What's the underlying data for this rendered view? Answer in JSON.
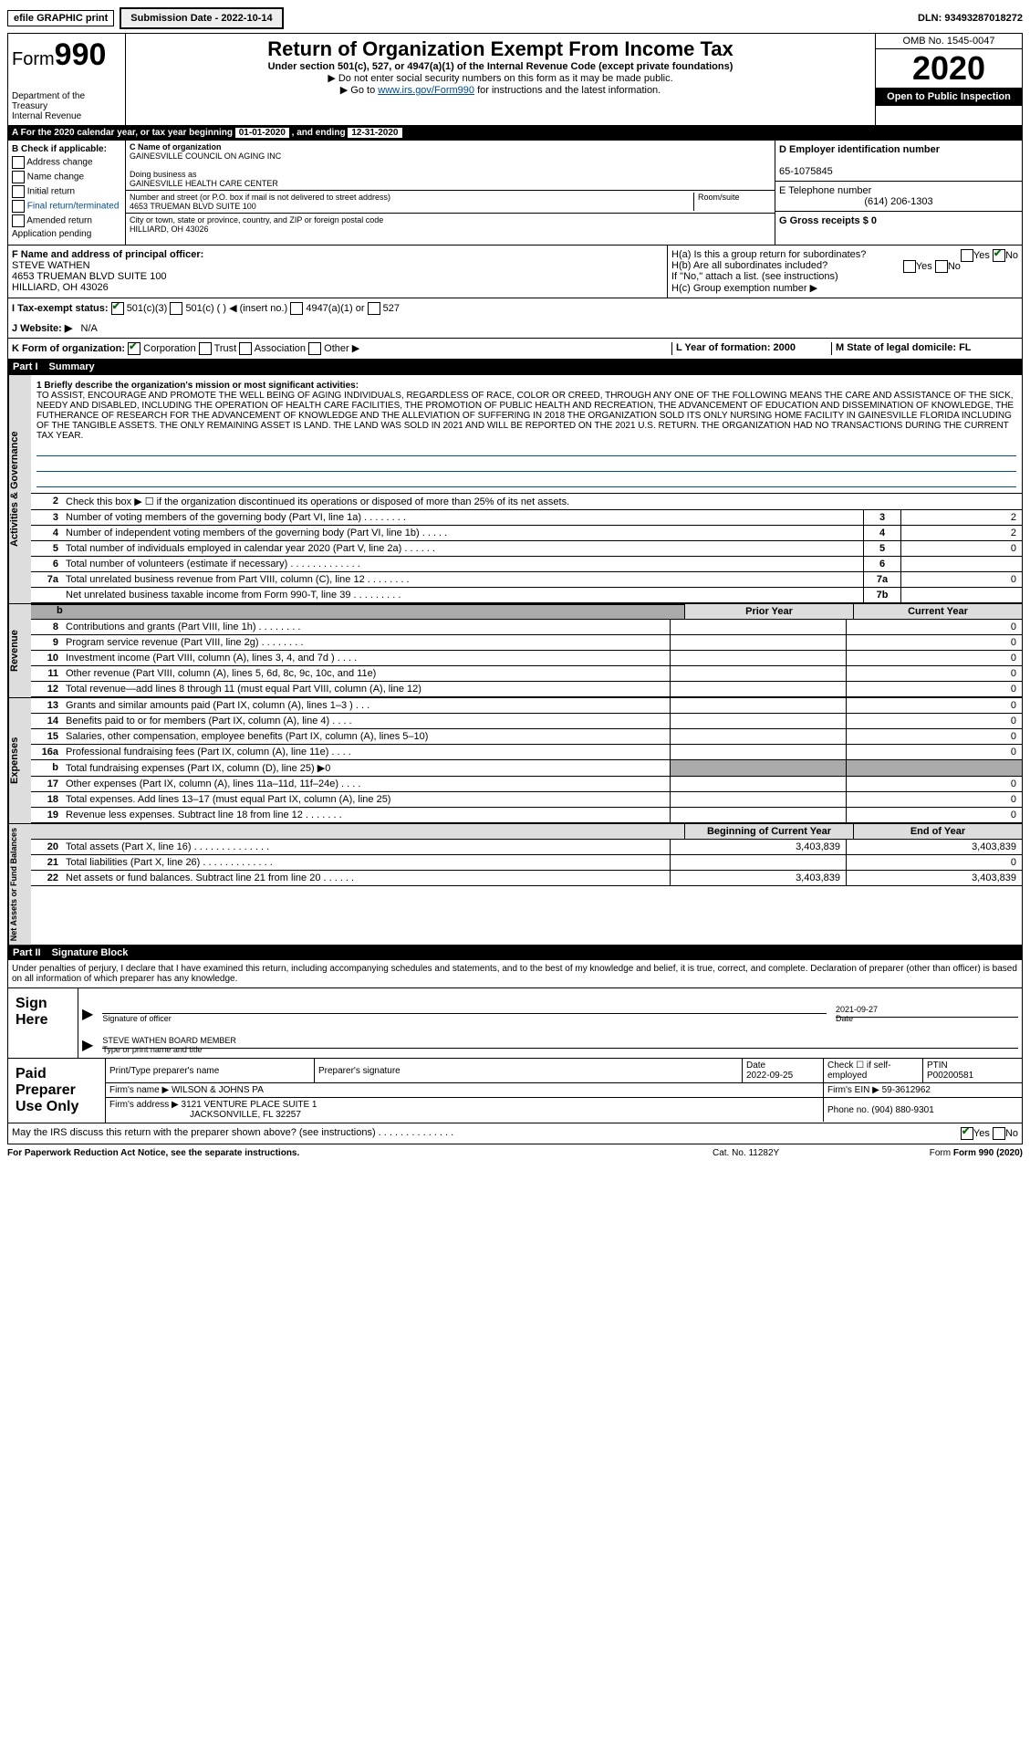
{
  "top": {
    "efile": "efile GRAPHIC print",
    "submission_label": "Submission Date - 2022-10-14",
    "dln": "DLN: 93493287018272"
  },
  "header": {
    "form_prefix": "Form",
    "form_number": "990",
    "dept1": "Department of the Treasury",
    "dept2": "Internal Revenue",
    "title": "Return of Organization Exempt From Income Tax",
    "sub1": "Under section 501(c), 527, or 4947(a)(1) of the Internal Revenue Code (except private foundations)",
    "sub2": "▶ Do not enter social security numbers on this form as it may be made public.",
    "sub3a": "▶ Go to ",
    "sub3_link": "www.irs.gov/Form990",
    "sub3b": " for instructions and the latest information.",
    "omb": "OMB No. 1545-0047",
    "year": "2020",
    "open_public": "Open to Public Inspection"
  },
  "cal_year": {
    "prefix": "A   For the 2020 calendar year, or tax year beginning ",
    "begin": "01-01-2020",
    "mid": " , and ending ",
    "end": "12-31-2020"
  },
  "section_b": {
    "b_label": "B Check if applicable:",
    "opts": [
      "Address change",
      "Name change",
      "Initial return",
      "Final return/terminated",
      "Amended return",
      "Application pending"
    ],
    "c_label": "C Name of organization",
    "org_name": "GAINESVILLE COUNCIL ON AGING INC",
    "dba_label": "Doing business as",
    "dba": "GAINESVILLE HEALTH CARE CENTER",
    "addr_label": "Number and street (or P.O. box if mail is not delivered to street address)",
    "addr": "4653 TRUEMAN BLVD SUITE 100",
    "room_label": "Room/suite",
    "city_label": "City or town, state or province, country, and ZIP or foreign postal code",
    "city": "HILLIARD, OH  43026",
    "d_label": "D Employer identification number",
    "ein": "65-1075845",
    "e_label": "E Telephone number",
    "phone": "(614) 206-1303",
    "g_label": "G Gross receipts $ 0"
  },
  "section_fh": {
    "f_label": "F  Name and address of principal officer:",
    "f_name": "STEVE WATHEN",
    "f_addr1": "4653 TRUEMAN BLVD SUITE 100",
    "f_addr2": "HILLIARD, OH  43026",
    "ha_label": "H(a)  Is this a group return for subordinates?",
    "hb_label": "H(b)  Are all subordinates included?",
    "hb_note": "If \"No,\" attach a list. (see instructions)",
    "hc_label": "H(c)  Group exemption number ▶",
    "yes": "Yes",
    "no": "No"
  },
  "row_i": {
    "label": "I   Tax-exempt status:",
    "o1": "501(c)(3)",
    "o2": "501(c) (   ) ◀ (insert no.)",
    "o3": "4947(a)(1) or",
    "o4": "527"
  },
  "row_j": {
    "label": "J   Website: ▶",
    "val": "N/A"
  },
  "row_k": {
    "label": "K Form of organization:",
    "o1": "Corporation",
    "o2": "Trust",
    "o3": "Association",
    "o4": "Other ▶",
    "l_label": "L Year of formation: 2000",
    "m_label": "M State of legal domicile: FL"
  },
  "part1": {
    "tag": "Part I",
    "title": "Summary"
  },
  "mission": {
    "label": "1  Briefly describe the organization's mission or most significant activities:",
    "text": "TO ASSIST, ENCOURAGE AND PROMOTE THE WELL BEING OF AGING INDIVIDUALS, REGARDLESS OF RACE, COLOR OR CREED, THROUGH ANY ONE OF THE FOLLOWING MEANS THE CARE AND ASSISTANCE OF THE SICK, NEEDY AND DISABLED, INCLUDING THE OPERATION OF HEALTH CARE FACILITIES, THE PROMOTION OF PUBLIC HEALTH AND RECREATION, THE ADVANCEMENT OF EDUCATION AND DISSEMINATION OF KNOWLEDGE, THE FUTHERANCE OF RESEARCH FOR THE ADVANCEMENT OF KNOWLEDGE AND THE ALLEVIATION OF SUFFERING IN 2018 THE ORGANIZATION SOLD ITS ONLY NURSING HOME FACILITY IN GAINESVILLE FLORIDA INCLUDING OF THE TANGIBLE ASSETS. THE ONLY REMAINING ASSET IS LAND. THE LAND WAS SOLD IN 2021 AND WILL BE REPORTED ON THE 2021 U.S. RETURN. THE ORGANIZATION HAD NO TRANSACTIONS DURING THE CURRENT TAX YEAR."
  },
  "vtabs": {
    "ag": "Activities & Governance",
    "rev": "Revenue",
    "exp": "Expenses",
    "net": "Net Assets or Fund Balances"
  },
  "lines_gov": [
    {
      "n": "2",
      "txt": "Check this box ▶ ☐ if the organization discontinued its operations or disposed of more than 25% of its net assets."
    },
    {
      "n": "3",
      "txt": "Number of voting members of the governing body (Part VI, line 1a)  .   .   .   .   .   .   .   .",
      "box": "3",
      "val": "2"
    },
    {
      "n": "4",
      "txt": "Number of independent voting members of the governing body (Part VI, line 1b)   .   .   .   .   .",
      "box": "4",
      "val": "2"
    },
    {
      "n": "5",
      "txt": "Total number of individuals employed in calendar year 2020 (Part V, line 2a)   .   .   .   .   .   .",
      "box": "5",
      "val": "0"
    },
    {
      "n": "6",
      "txt": "Total number of volunteers (estimate if necessary)  .   .   .   .   .   .   .   .   .   .   .   .   .",
      "box": "6",
      "val": ""
    },
    {
      "n": "7a",
      "txt": "Total unrelated business revenue from Part VIII, column (C), line 12  .   .   .   .   .   .   .   .",
      "box": "7a",
      "val": "0"
    },
    {
      "n": "",
      "txt": "Net unrelated business taxable income from Form 990-T, line 39   .   .   .   .   .   .   .   .   .",
      "box": "7b",
      "val": ""
    }
  ],
  "fin_hdr": {
    "prior": "Prior Year",
    "current": "Current Year"
  },
  "lines_rev": [
    {
      "n": "8",
      "txt": "Contributions and grants (Part VIII, line 1h)  .   .   .   .   .   .   .   .",
      "c1": "",
      "c2": "0"
    },
    {
      "n": "9",
      "txt": "Program service revenue (Part VIII, line 2g)  .   .   .   .   .   .   .   .",
      "c1": "",
      "c2": "0"
    },
    {
      "n": "10",
      "txt": "Investment income (Part VIII, column (A), lines 3, 4, and 7d )   .   .   .   .",
      "c1": "",
      "c2": "0"
    },
    {
      "n": "11",
      "txt": "Other revenue (Part VIII, column (A), lines 5, 6d, 8c, 9c, 10c, and 11e)",
      "c1": "",
      "c2": "0"
    },
    {
      "n": "12",
      "txt": "Total revenue—add lines 8 through 11 (must equal Part VIII, column (A), line 12)",
      "c1": "",
      "c2": "0"
    }
  ],
  "lines_exp": [
    {
      "n": "13",
      "txt": "Grants and similar amounts paid (Part IX, column (A), lines 1–3 )  .   .   .",
      "c1": "",
      "c2": "0"
    },
    {
      "n": "14",
      "txt": "Benefits paid to or for members (Part IX, column (A), line 4)  .   .   .   .",
      "c1": "",
      "c2": "0"
    },
    {
      "n": "15",
      "txt": "Salaries, other compensation, employee benefits (Part IX, column (A), lines 5–10)",
      "c1": "",
      "c2": "0"
    },
    {
      "n": "16a",
      "txt": "Professional fundraising fees (Part IX, column (A), line 11e)  .   .   .   .",
      "c1": "",
      "c2": "0"
    },
    {
      "n": "b",
      "txt": "Total fundraising expenses (Part IX, column (D), line 25) ▶0",
      "grey": true
    },
    {
      "n": "17",
      "txt": "Other expenses (Part IX, column (A), lines 11a–11d, 11f–24e)  .   .   .   .",
      "c1": "",
      "c2": "0"
    },
    {
      "n": "18",
      "txt": "Total expenses. Add lines 13–17 (must equal Part IX, column (A), line 25)",
      "c1": "",
      "c2": "0"
    },
    {
      "n": "19",
      "txt": "Revenue less expenses. Subtract line 18 from line 12  .   .   .   .   .   .   .",
      "c1": "",
      "c2": "0"
    }
  ],
  "net_hdr": {
    "begin": "Beginning of Current Year",
    "end": "End of Year"
  },
  "lines_net": [
    {
      "n": "20",
      "txt": "Total assets (Part X, line 16)  .   .   .   .   .   .   .   .   .   .   .   .   .   .",
      "c1": "3,403,839",
      "c2": "3,403,839"
    },
    {
      "n": "21",
      "txt": "Total liabilities (Part X, line 26)  .   .   .   .   .   .   .   .   .   .   .   .   .",
      "c1": "",
      "c2": "0"
    },
    {
      "n": "22",
      "txt": "Net assets or fund balances. Subtract line 21 from line 20  .   .   .   .   .   .",
      "c1": "3,403,839",
      "c2": "3,403,839"
    }
  ],
  "part2": {
    "tag": "Part II",
    "title": "Signature Block"
  },
  "sig_intro": "Under penalties of perjury, I declare that I have examined this return, including accompanying schedules and statements, and to the best of my knowledge and belief, it is true, correct, and complete. Declaration of preparer (other than officer) is based on all information of which preparer has any knowledge.",
  "sign": {
    "label": "Sign Here",
    "sig_of_officer": "Signature of officer",
    "date_val": "2021-09-27",
    "date_lbl": "Date",
    "name": "STEVE WATHEN  BOARD MEMBER",
    "name_lbl": "Type or print name and title"
  },
  "paid": {
    "label": "Paid Preparer Use Only",
    "h1": "Print/Type preparer's name",
    "h2": "Preparer's signature",
    "h3_lbl": "Date",
    "h3_val": "2022-09-25",
    "h4": "Check ☐ if self-employed",
    "h5_lbl": "PTIN",
    "h5_val": "P00200581",
    "firm_name_lbl": "Firm's name   ▶",
    "firm_name": "WILSON & JOHNS PA",
    "firm_ein_lbl": "Firm's EIN ▶",
    "firm_ein": "59-3612962",
    "firm_addr_lbl": "Firm's address ▶",
    "firm_addr1": "3121 VENTURE PLACE SUITE 1",
    "firm_addr2": "JACKSONVILLE, FL  32257",
    "phone_lbl": "Phone no.",
    "phone": "(904) 880-9301"
  },
  "footer": {
    "q": "May the IRS discuss this return with the preparer shown above? (see instructions)   .   .   .   .   .   .   .   .   .   .   .   .   .   .",
    "yes": "Yes",
    "no": "No"
  },
  "bottom": {
    "pra": "For Paperwork Reduction Act Notice, see the separate instructions.",
    "cat": "Cat. No. 11282Y",
    "form": "Form 990 (2020)"
  }
}
